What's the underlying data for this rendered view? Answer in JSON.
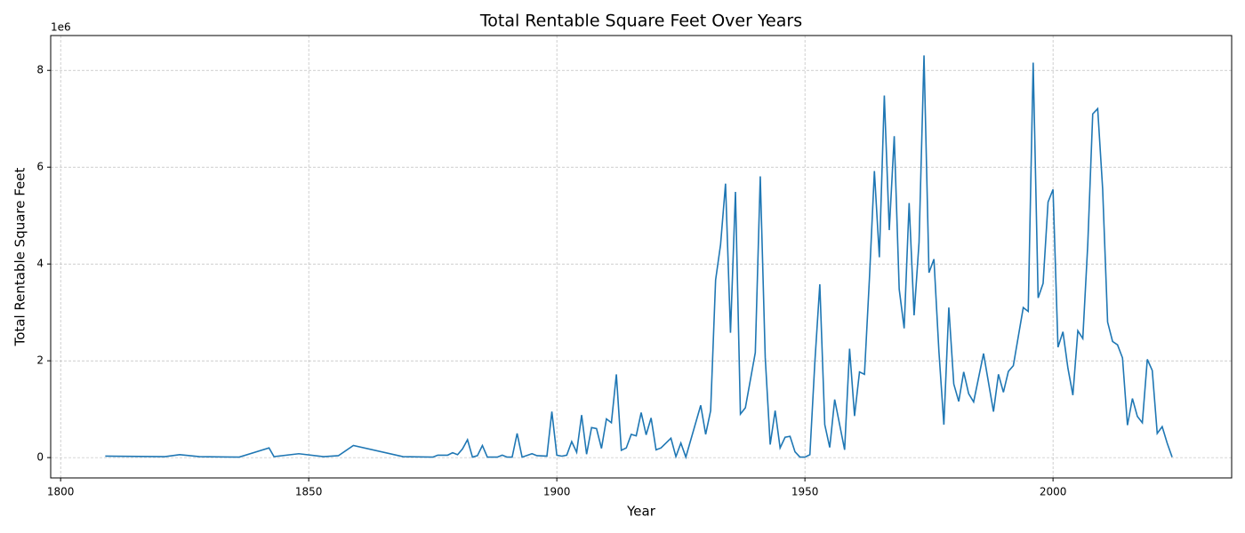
{
  "chart_data": {
    "type": "line",
    "title": "Total Rentable Square Feet Over Years",
    "x_label": "Year",
    "y_label": "Total Rentable Square Feet",
    "y_offset_label": "1e6",
    "x": [
      1809,
      1821,
      1824,
      1828,
      1836,
      1842,
      1843,
      1848,
      1853,
      1856,
      1859,
      1869,
      1875,
      1876,
      1878,
      1879,
      1880,
      1881,
      1882,
      1883,
      1884,
      1885,
      1886,
      1888,
      1889,
      1890,
      1891,
      1892,
      1893,
      1895,
      1896,
      1898,
      1899,
      1900,
      1901,
      1902,
      1903,
      1904,
      1905,
      1906,
      1907,
      1908,
      1909,
      1910,
      1911,
      1912,
      1913,
      1914,
      1915,
      1916,
      1917,
      1918,
      1919,
      1920,
      1921,
      1923,
      1924,
      1925,
      1926,
      1929,
      1930,
      1931,
      1932,
      1933,
      1934,
      1935,
      1936,
      1937,
      1938,
      1940,
      1941,
      1942,
      1943,
      1944,
      1945,
      1946,
      1947,
      1948,
      1949,
      1950,
      1951,
      1952,
      1953,
      1954,
      1955,
      1956,
      1958,
      1959,
      1960,
      1961,
      1962,
      1963,
      1964,
      1965,
      1966,
      1967,
      1968,
      1969,
      1970,
      1971,
      1972,
      1973,
      1974,
      1975,
      1976,
      1977,
      1978,
      1979,
      1980,
      1981,
      1982,
      1983,
      1984,
      1986,
      1988,
      1989,
      1990,
      1991,
      1992,
      1994,
      1995,
      1996,
      1997,
      1998,
      1999,
      2000,
      2001,
      2002,
      2003,
      2004,
      2005,
      2006,
      2007,
      2008,
      2009,
      2010,
      2011,
      2012,
      2013,
      2014,
      2015,
      2016,
      2017,
      2018,
      2019,
      2020,
      2021,
      2022,
      2023,
      2024
    ],
    "series": [
      {
        "color": "#1f77b4",
        "values": [
          30000,
          20000,
          60000,
          20000,
          10000,
          200000,
          20000,
          80000,
          20000,
          40000,
          250000,
          20000,
          10000,
          50000,
          50000,
          100000,
          60000,
          180000,
          370000,
          10000,
          40000,
          250000,
          10000,
          10000,
          50000,
          10000,
          10000,
          500000,
          10000,
          80000,
          40000,
          30000,
          950000,
          50000,
          30000,
          50000,
          330000,
          110000,
          880000,
          70000,
          620000,
          600000,
          190000,
          800000,
          720000,
          1720000,
          150000,
          200000,
          480000,
          450000,
          930000,
          470000,
          820000,
          160000,
          200000,
          400000,
          20000,
          300000,
          10000,
          1080000,
          480000,
          970000,
          3670000,
          4400000,
          5660000,
          2580000,
          5490000,
          900000,
          1030000,
          2170000,
          5810000,
          2070000,
          270000,
          970000,
          200000,
          420000,
          440000,
          120000,
          10000,
          10000,
          60000,
          1970000,
          3580000,
          680000,
          210000,
          1200000,
          160000,
          2250000,
          860000,
          1770000,
          1720000,
          3700000,
          5920000,
          4140000,
          7480000,
          4700000,
          6640000,
          3480000,
          2670000,
          5260000,
          2940000,
          4450000,
          8310000,
          3820000,
          4100000,
          2200000,
          680000,
          3100000,
          1520000,
          1160000,
          1770000,
          1320000,
          1150000,
          2150000,
          950000,
          1720000,
          1350000,
          1780000,
          1900000,
          3100000,
          3020000,
          8160000,
          3300000,
          3600000,
          5280000,
          5540000,
          2280000,
          2600000,
          1850000,
          1290000,
          2620000,
          2460000,
          4400000,
          7100000,
          7210000,
          5550000,
          2800000,
          2400000,
          2330000,
          2060000,
          670000,
          1220000,
          850000,
          720000,
          2030000,
          1800000,
          500000,
          640000,
          300000,
          10000
        ]
      }
    ],
    "xlim": [
      1798,
      2036
    ],
    "xticks": [
      1800,
      1850,
      1900,
      1950,
      2000
    ],
    "ylim": [
      -420000,
      8720000
    ],
    "yticks": [
      0,
      {
        "value": 2000000,
        "label": "2"
      },
      {
        "value": 4000000,
        "label": "4"
      },
      {
        "value": 6000000,
        "label": "6"
      },
      {
        "value": 8000000,
        "label": "8"
      }
    ],
    "grid": true
  }
}
